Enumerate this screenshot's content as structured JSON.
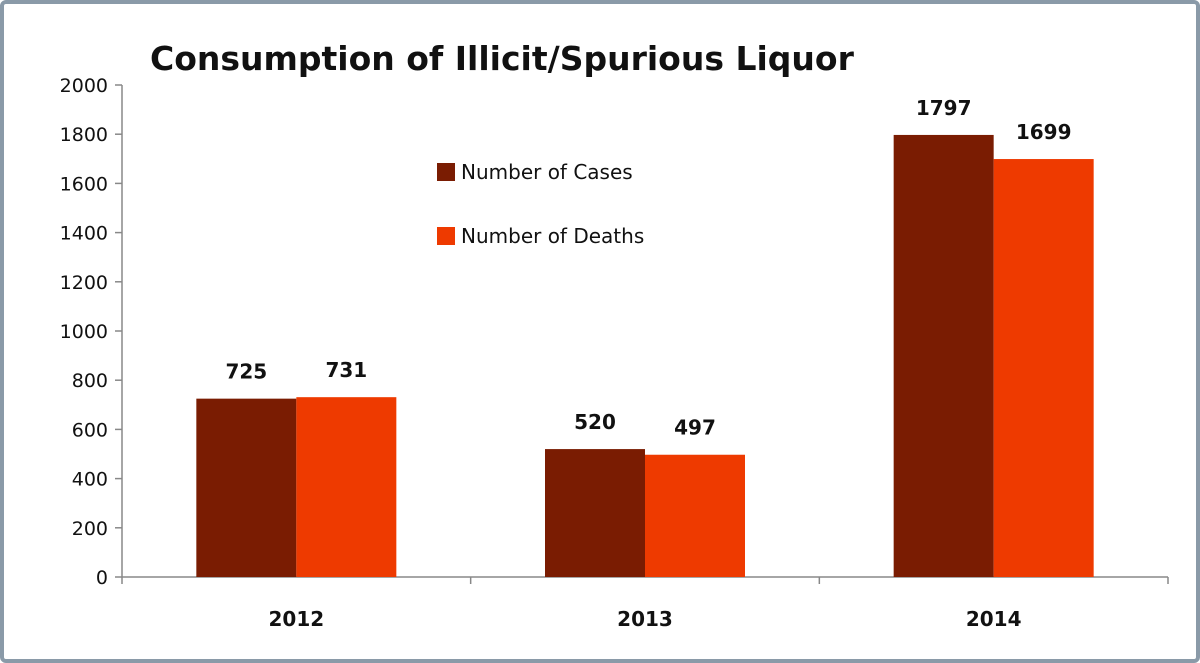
{
  "chart_data": {
    "type": "bar",
    "title": "Consumption of Illicit/Spurious Liquor",
    "categories": [
      "2012",
      "2013",
      "2014"
    ],
    "series": [
      {
        "name": "Number of Cases",
        "values": [
          725,
          520,
          1797
        ],
        "color": "#7a1c02"
      },
      {
        "name": "Number of Deaths",
        "values": [
          731,
          497,
          1699
        ],
        "color": "#ee3a00"
      }
    ],
    "ylim": [
      0,
      2000
    ],
    "yticks": [
      0,
      200,
      400,
      600,
      800,
      1000,
      1200,
      1400,
      1600,
      1800,
      2000
    ],
    "grid": false,
    "legend_position": "top-center",
    "data_labels": true,
    "xlabel": "",
    "ylabel": ""
  }
}
